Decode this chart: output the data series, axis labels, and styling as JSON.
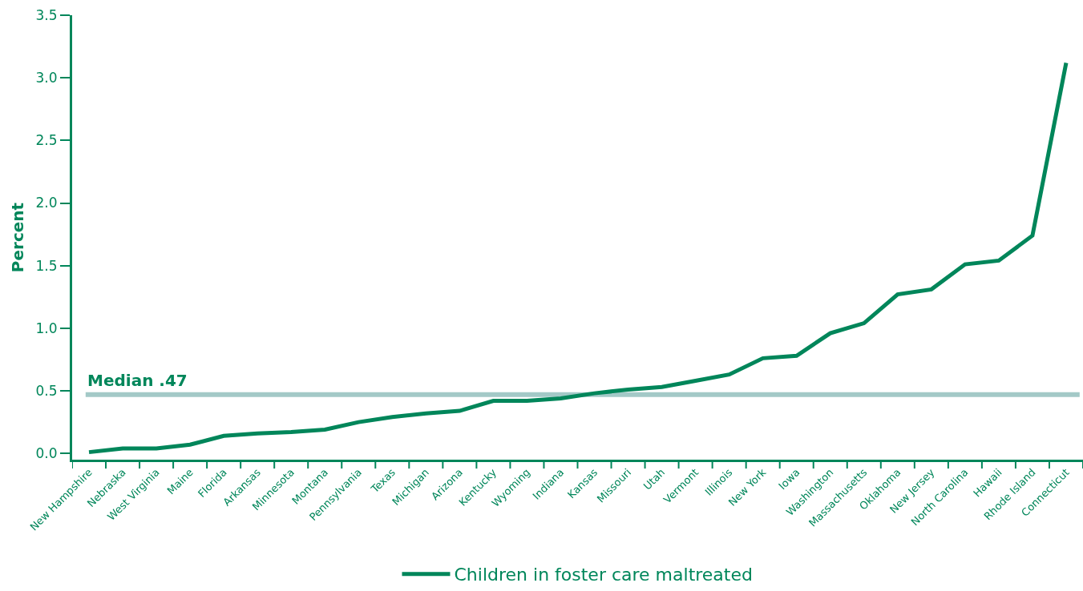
{
  "chart_data": {
    "type": "line",
    "ylabel": "Percent",
    "categories": [
      "New Hampshire",
      "Nebraska",
      "West Virginia",
      "Maine",
      "Florida",
      "Arkansas",
      "Minnesota",
      "Montana",
      "Pennsylvania",
      "Texas",
      "Michigan",
      "Arizona",
      "Kentucky",
      "Wyoming",
      "Indiana",
      "Kansas",
      "Missouri",
      "Utah",
      "Vermont",
      "Illinois",
      "New York",
      "Iowa",
      "Washington",
      "Massachusetts",
      "Oklahoma",
      "New Jersey",
      "North Carolina",
      "Hawaii",
      "Rhode Island",
      "Connecticut"
    ],
    "series": [
      {
        "name": "Children in foster care maltreated",
        "color": "#00865a",
        "values": [
          0.01,
          0.04,
          0.04,
          0.07,
          0.14,
          0.16,
          0.17,
          0.19,
          0.25,
          0.29,
          0.32,
          0.34,
          0.42,
          0.42,
          0.44,
          0.48,
          0.51,
          0.53,
          0.58,
          0.63,
          0.76,
          0.78,
          0.96,
          1.04,
          1.27,
          1.31,
          1.51,
          1.54,
          1.74,
          3.12
        ]
      }
    ],
    "ylim": [
      -0.05,
      3.5
    ],
    "yticks": [
      {
        "value": 0,
        "label": "0.0"
      },
      {
        "value": 0.5,
        "label": "0.5"
      },
      {
        "value": 1,
        "label": "1.0"
      },
      {
        "value": 1.5,
        "label": "1.5"
      },
      {
        "value": 2,
        "label": "2.0"
      },
      {
        "value": 2.5,
        "label": "2.5"
      },
      {
        "value": 3,
        "label": "3.0"
      },
      {
        "value": 3.5,
        "label": "3.5"
      }
    ],
    "ref_lines": [
      {
        "axis": "y",
        "value": 0.47,
        "label": "Median .47",
        "color": "#a3c9c7"
      }
    ],
    "grid": false,
    "legend": "bottom",
    "marker": "none",
    "line_style": "solid"
  }
}
